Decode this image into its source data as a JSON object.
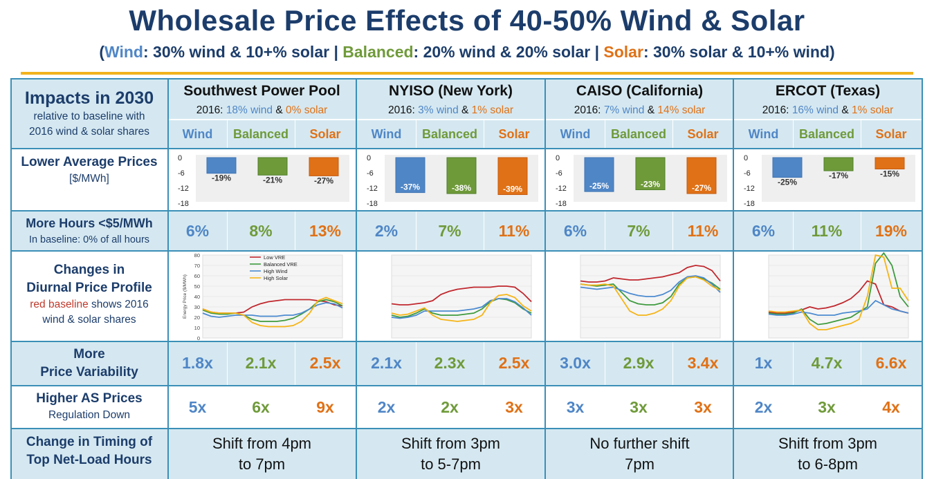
{
  "title": "Wholesale Price Effects of 40-50% Wind & Solar",
  "subtitle": {
    "open": "(",
    "wind_name": "Wind",
    "wind_desc": ": 30% wind & 10+% solar",
    "sep1": " | ",
    "bal_name": "Balanced",
    "bal_desc": ": 20% wind & 20% solar",
    "sep2": " | ",
    "sol_name": "Solar",
    "sol_desc": ": 30% solar & 10+% wind",
    "close": ")"
  },
  "impacts": {
    "title": "Impacts in 2030",
    "sub1": "relative to baseline with",
    "sub2": "2016 wind & solar shares"
  },
  "scenario_labels": [
    "Wind",
    "Balanced",
    "Solar"
  ],
  "colors": {
    "wind": "#4f86c6",
    "balanced": "#6f9a3a",
    "solar": "#e07116",
    "baseline": "#c0392b",
    "heading": "#1c3d6b",
    "band": "#d5e8f1"
  },
  "regions": [
    {
      "name": "Southwest Power Pool",
      "year": "2016: ",
      "wind": "18% wind",
      "amp": " & ",
      "solar": "0% solar"
    },
    {
      "name": "NYISO (New York)",
      "year": "2016: ",
      "wind": "3% wind",
      "amp": " & ",
      "solar": "1% solar"
    },
    {
      "name": "CAISO (California)",
      "year": "2016: ",
      "wind": "7% wind",
      "amp": " & ",
      "solar": "14% solar"
    },
    {
      "name": "ERCOT (Texas)",
      "year": "2016: ",
      "wind": "16% wind",
      "amp": " & ",
      "solar": "1% solar"
    }
  ],
  "rows": {
    "avg_prices": {
      "title": "Lower Average Prices",
      "unit": "[$/MWh]"
    },
    "hours": {
      "title": "More Hours <$5/MWh",
      "sub": "In baseline: 0% of all hours"
    },
    "diurnal": {
      "l1": "Changes in",
      "l2": "Diurnal Price Profile",
      "red": "red baseline",
      "rest": " shows 2016",
      "l4": "wind & solar shares"
    },
    "variability": {
      "l1": "More",
      "l2": "Price Variability"
    },
    "as_prices": {
      "title": "Higher AS Prices",
      "sub": "Regulation Down"
    },
    "timing": {
      "l1": "Change in Timing of",
      "l2": "Top Net-Load Hours"
    }
  },
  "hours_values": [
    [
      "6%",
      "8%",
      "13%"
    ],
    [
      "2%",
      "7%",
      "11%"
    ],
    [
      "6%",
      "7%",
      "11%"
    ],
    [
      "6%",
      "11%",
      "19%"
    ]
  ],
  "variability_values": [
    [
      "1.8x",
      "2.1x",
      "2.5x"
    ],
    [
      "2.1x",
      "2.3x",
      "2.5x"
    ],
    [
      "3.0x",
      "2.9x",
      "3.4x"
    ],
    [
      "1x",
      "4.7x",
      "6.6x"
    ]
  ],
  "as_values": [
    [
      "5x",
      "6x",
      "9x"
    ],
    [
      "2x",
      "2x",
      "3x"
    ],
    [
      "3x",
      "3x",
      "3x"
    ],
    [
      "2x",
      "3x",
      "4x"
    ]
  ],
  "timing_values": [
    [
      "Shift from 4pm",
      "to 7pm"
    ],
    [
      "Shift from 3pm",
      "to 5-7pm"
    ],
    [
      "No further shift",
      "7pm"
    ],
    [
      "Shift from 3pm",
      "to 6-8pm"
    ]
  ],
  "chart_data": [
    {
      "type": "bar",
      "region": "Southwest Power Pool",
      "categories": [
        "Wind",
        "Balanced",
        "Solar"
      ],
      "values": [
        -6.2,
        -6.9,
        -7.2
      ],
      "data_labels": [
        "-19%",
        "-21%",
        "-27%"
      ],
      "ylim": [
        -18,
        0
      ],
      "ticks": [
        "0",
        "-6",
        "-12",
        "-18"
      ]
    },
    {
      "type": "bar",
      "region": "NYISO (New York)",
      "categories": [
        "Wind",
        "Balanced",
        "Solar"
      ],
      "values": [
        -13.8,
        -14.2,
        -14.6
      ],
      "data_labels": [
        "-37%",
        "-38%",
        "-39%"
      ],
      "ylim": [
        -18,
        0
      ],
      "ticks": [
        "0",
        "-6",
        "-12",
        "-18"
      ]
    },
    {
      "type": "bar",
      "region": "CAISO (California)",
      "categories": [
        "Wind",
        "Balanced",
        "Solar"
      ],
      "values": [
        -13.4,
        -12.7,
        -14.2
      ],
      "data_labels": [
        "-25%",
        "-23%",
        "-27%"
      ],
      "ylim": [
        -18,
        0
      ],
      "ticks": [
        "0",
        "-6",
        "-12",
        "-18"
      ]
    },
    {
      "type": "bar",
      "region": "ERCOT (Texas)",
      "categories": [
        "Wind",
        "Balanced",
        "Solar"
      ],
      "values": [
        -7.8,
        -5.2,
        -4.5
      ],
      "data_labels": [
        "-25%",
        "-17%",
        "-15%"
      ],
      "ylim": [
        -18,
        0
      ],
      "ticks": [
        "0",
        "-6",
        "-12",
        "-18"
      ]
    },
    {
      "type": "line",
      "region": "Southwest Power Pool",
      "ylabel": "Energy Price ($/MWh)",
      "yticks": [
        "80",
        "70",
        "60",
        "50",
        "40",
        "30",
        "20",
        "10",
        "0"
      ],
      "ylim": [
        0,
        80
      ],
      "series": [
        {
          "name": "Low VRE",
          "values": [
            28,
            25,
            24,
            24,
            24,
            25,
            30,
            33,
            35,
            36,
            37,
            37,
            37,
            37,
            36,
            35,
            32,
            31
          ]
        },
        {
          "name": "Balanced VRE",
          "values": [
            27,
            24,
            23,
            23,
            24,
            22,
            18,
            16,
            16,
            16,
            17,
            19,
            23,
            28,
            35,
            37,
            35,
            31
          ]
        },
        {
          "name": "High Wind",
          "values": [
            24,
            21,
            20,
            21,
            22,
            22,
            22,
            21,
            21,
            21,
            22,
            22,
            24,
            28,
            32,
            34,
            33,
            29
          ]
        },
        {
          "name": "High Solar",
          "values": [
            28,
            25,
            24,
            24,
            24,
            22,
            15,
            12,
            11,
            11,
            11,
            12,
            16,
            24,
            36,
            39,
            36,
            33
          ]
        }
      ]
    },
    {
      "type": "line",
      "region": "NYISO (New York)",
      "series": [
        {
          "name": "Low VRE",
          "values": [
            33,
            32,
            32,
            33,
            34,
            36,
            42,
            45,
            47,
            48,
            49,
            49,
            49,
            50,
            50,
            49,
            43,
            35
          ]
        },
        {
          "name": "Balanced VRE",
          "values": [
            22,
            20,
            21,
            24,
            28,
            24,
            22,
            22,
            22,
            23,
            24,
            28,
            35,
            38,
            37,
            34,
            28,
            24
          ]
        },
        {
          "name": "High Wind",
          "values": [
            20,
            19,
            20,
            22,
            26,
            26,
            26,
            26,
            26,
            27,
            28,
            30,
            36,
            38,
            38,
            35,
            29,
            22
          ]
        },
        {
          "name": "High Solar",
          "values": [
            24,
            22,
            23,
            26,
            29,
            22,
            18,
            17,
            16,
            17,
            18,
            22,
            34,
            41,
            42,
            39,
            31,
            26
          ]
        }
      ]
    },
    {
      "type": "line",
      "region": "CAISO (California)",
      "series": [
        {
          "name": "Low VRE",
          "values": [
            55,
            54,
            54,
            55,
            58,
            57,
            56,
            56,
            57,
            58,
            59,
            61,
            63,
            68,
            70,
            69,
            65,
            55
          ]
        },
        {
          "name": "Balanced VRE",
          "values": [
            52,
            51,
            50,
            51,
            52,
            44,
            36,
            33,
            32,
            32,
            34,
            40,
            52,
            58,
            59,
            57,
            53,
            47
          ]
        },
        {
          "name": "High Wind",
          "values": [
            49,
            48,
            47,
            48,
            49,
            46,
            43,
            41,
            40,
            40,
            42,
            46,
            54,
            59,
            60,
            58,
            52,
            44
          ]
        },
        {
          "name": "High Solar",
          "values": [
            52,
            51,
            51,
            52,
            50,
            38,
            26,
            22,
            22,
            24,
            28,
            36,
            50,
            58,
            59,
            56,
            50,
            46
          ]
        }
      ]
    },
    {
      "type": "line",
      "region": "ERCOT (Texas)",
      "series": [
        {
          "name": "Low VRE",
          "values": [
            25,
            24,
            24,
            25,
            27,
            30,
            28,
            29,
            31,
            34,
            38,
            45,
            55,
            52,
            32,
            30,
            26,
            24
          ]
        },
        {
          "name": "Balanced VRE",
          "values": [
            24,
            23,
            23,
            24,
            28,
            18,
            13,
            14,
            16,
            18,
            20,
            25,
            30,
            72,
            82,
            70,
            40,
            30
          ]
        },
        {
          "name": "High Wind",
          "values": [
            23,
            22,
            22,
            23,
            25,
            24,
            22,
            22,
            22,
            24,
            25,
            26,
            28,
            36,
            32,
            28,
            26,
            24
          ]
        },
        {
          "name": "High Solar",
          "values": [
            26,
            25,
            25,
            26,
            27,
            14,
            8,
            8,
            10,
            12,
            14,
            18,
            40,
            80,
            78,
            48,
            48,
            36
          ]
        }
      ]
    }
  ]
}
